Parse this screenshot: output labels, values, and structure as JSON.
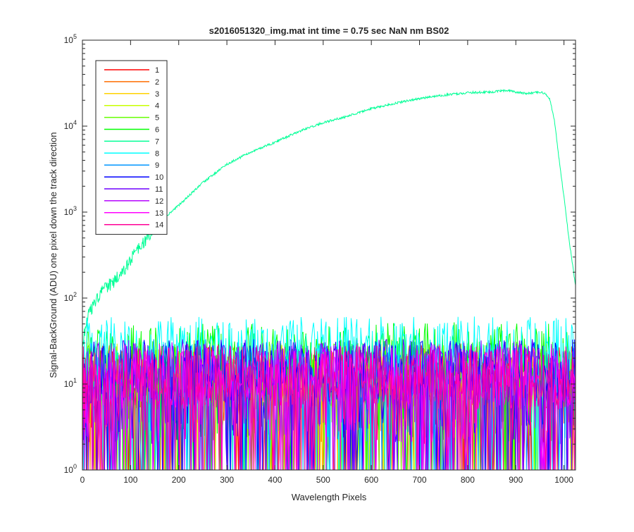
{
  "chart_data": {
    "type": "line",
    "title": "s2016051320_img.mat int time = 0.75 sec  NaN nm BS02",
    "xlabel": "Wavelength Pixels",
    "ylabel": "Signal-BackGround (ADU) one pixel down the track direction",
    "xlim": [
      0,
      1024
    ],
    "ylim": [
      1,
      100000
    ],
    "yscale": "log",
    "xticks": [
      0,
      100,
      200,
      300,
      400,
      500,
      600,
      700,
      800,
      900,
      1000
    ],
    "xtick_labels": [
      "0",
      "100",
      "200",
      "300",
      "400",
      "500",
      "600",
      "700",
      "800",
      "900",
      "1000"
    ],
    "yticks": [
      1,
      10,
      100,
      1000,
      10000,
      100000
    ],
    "ytick_labels": [
      {
        "base": "10",
        "exp": "0"
      },
      {
        "base": "10",
        "exp": "1"
      },
      {
        "base": "10",
        "exp": "2"
      },
      {
        "base": "10",
        "exp": "3"
      },
      {
        "base": "10",
        "exp": "4"
      },
      {
        "base": "10",
        "exp": "5"
      }
    ],
    "grid": false,
    "legend_position": "top-left",
    "series": [
      {
        "name": "1",
        "color": "#ff0000",
        "kind": "noise",
        "level": 12
      },
      {
        "name": "2",
        "color": "#ff6e00",
        "kind": "noise",
        "level": 12
      },
      {
        "name": "3",
        "color": "#ffd200",
        "kind": "noise",
        "level": 12
      },
      {
        "name": "4",
        "color": "#c8ff00",
        "kind": "noise",
        "level": 13
      },
      {
        "name": "5",
        "color": "#64ff00",
        "kind": "noise",
        "level": 14
      },
      {
        "name": "6",
        "color": "#00ff00",
        "kind": "noise",
        "level": 22
      },
      {
        "name": "7",
        "color": "#00ff96",
        "kind": "signal",
        "x": [
          0,
          10,
          20,
          40,
          60,
          80,
          100,
          130,
          150,
          175,
          200,
          250,
          300,
          350,
          400,
          450,
          500,
          550,
          600,
          650,
          700,
          750,
          800,
          850,
          880,
          900,
          920,
          940,
          950,
          960,
          970,
          980,
          990,
          1000,
          1010,
          1020,
          1024
        ],
        "values": [
          30,
          60,
          80,
          120,
          150,
          190,
          280,
          480,
          650,
          900,
          1200,
          2200,
          3600,
          5000,
          6500,
          8700,
          11000,
          13000,
          16000,
          18500,
          21000,
          23000,
          24500,
          25000,
          26000,
          25000,
          24000,
          24500,
          25000,
          24000,
          21000,
          12000,
          4000,
          1500,
          500,
          200,
          140
        ]
      },
      {
        "name": "8",
        "color": "#00ffff",
        "kind": "noise",
        "level": 26
      },
      {
        "name": "9",
        "color": "#0096ff",
        "kind": "noise",
        "level": 14
      },
      {
        "name": "10",
        "color": "#0000ff",
        "kind": "noise",
        "level": 14
      },
      {
        "name": "11",
        "color": "#6e00ff",
        "kind": "noise",
        "level": 14
      },
      {
        "name": "12",
        "color": "#b400ff",
        "kind": "noise",
        "level": 13
      },
      {
        "name": "13",
        "color": "#ff00ff",
        "kind": "noise",
        "level": 12
      },
      {
        "name": "14",
        "color": "#ff0096",
        "kind": "noise",
        "level": 12
      }
    ]
  }
}
